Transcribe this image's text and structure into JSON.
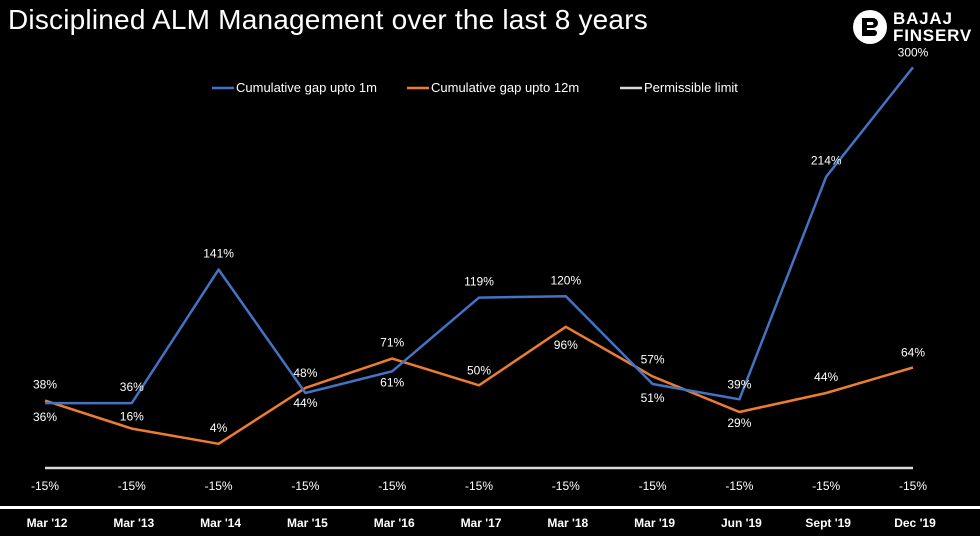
{
  "title": "Disciplined ALM Management over the last 8 years",
  "logo": {
    "line1": "BAJAJ",
    "line2": "FINSERV",
    "icon": "bajaj-finserv-logo-icon"
  },
  "colors": {
    "series1": "#4472c4",
    "series2": "#ed7d31",
    "series3": "#d9d9d9",
    "background": "#000000"
  },
  "chart_data": {
    "type": "line",
    "title": "Disciplined ALM Management over the last 8 years",
    "xlabel": "",
    "ylabel": "",
    "categories": [
      "Mar '12",
      "Mar '13",
      "Mar '14",
      "Mar '15",
      "Mar '16",
      "Mar '17",
      "Mar '18",
      "Mar '19",
      "Jun '19",
      "Sept '19",
      "Dec '19"
    ],
    "ylim": [
      -20,
      310
    ],
    "grid": false,
    "legend": "top",
    "series": [
      {
        "name": "Cumulative gap upto 1m",
        "values": [
          36,
          36,
          141,
          44,
          61,
          119,
          120,
          51,
          39,
          214,
          300
        ],
        "labels": [
          "36%",
          "36%",
          "141%",
          "44%",
          "61%",
          "119%",
          "120%",
          "51%",
          "39%",
          "214%",
          "300%"
        ]
      },
      {
        "name": "Cumulative gap upto 12m",
        "values": [
          38,
          16,
          4,
          48,
          71,
          50,
          96,
          57,
          29,
          44,
          64
        ],
        "labels": [
          "38%",
          "16%",
          "4%",
          "48%",
          "71%",
          "50%",
          "96%",
          "57%",
          "29%",
          "44%",
          "64%"
        ]
      },
      {
        "name": "Permissible limit",
        "values": [
          -15,
          -15,
          -15,
          -15,
          -15,
          -15,
          -15,
          -15,
          -15,
          -15,
          -15
        ],
        "labels": [
          "-15%",
          "-15%",
          "-15%",
          "-15%",
          "-15%",
          "-15%",
          "-15%",
          "-15%",
          "-15%",
          "-15%",
          "-15%"
        ]
      }
    ]
  }
}
